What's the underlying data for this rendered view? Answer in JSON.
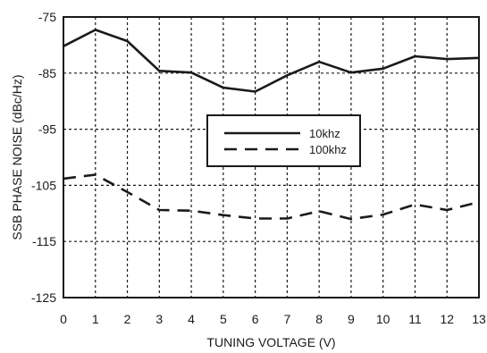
{
  "chart_data": {
    "type": "line",
    "title": "",
    "xlabel": "TUNING VOLTAGE (V)",
    "ylabel": "SSB PHASE NOISE (dBc/Hz)",
    "xlim": [
      0,
      13
    ],
    "ylim": [
      -125,
      -75
    ],
    "x_ticks": [
      0,
      1,
      2,
      3,
      4,
      5,
      6,
      7,
      8,
      9,
      10,
      11,
      12,
      13
    ],
    "y_ticks": [
      -75,
      -85,
      -95,
      -105,
      -115,
      -125
    ],
    "grid": "dotted",
    "legend_position": "center-right",
    "series": [
      {
        "name": "10khz",
        "style": "solid",
        "color": "#1a1a1a",
        "x": [
          0,
          1,
          2,
          3,
          4,
          5,
          6,
          7,
          8,
          9,
          10,
          11,
          12,
          13
        ],
        "y": [
          -80.2,
          -77.3,
          -79.3,
          -84.6,
          -84.9,
          -87.6,
          -88.3,
          -85.4,
          -83.0,
          -84.9,
          -84.2,
          -82.0,
          -82.5,
          -82.3
        ]
      },
      {
        "name": "100khz",
        "style": "dashed",
        "color": "#1a1a1a",
        "x": [
          0,
          1,
          2,
          3,
          4,
          5,
          6,
          7,
          8,
          9,
          10,
          11,
          12,
          13
        ],
        "y": [
          -103.8,
          -103.1,
          -106.2,
          -109.4,
          -109.5,
          -110.3,
          -110.9,
          -110.9,
          -109.6,
          -111.0,
          -110.2,
          -108.4,
          -109.4,
          -108.0
        ]
      }
    ]
  }
}
